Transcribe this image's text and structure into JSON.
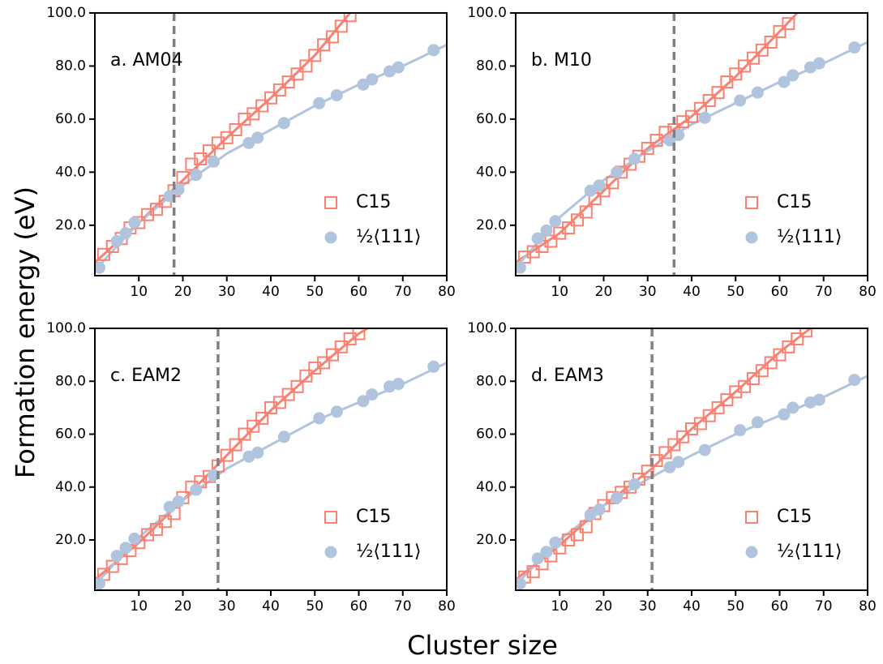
{
  "xlabel": "Cluster size",
  "ylabel": "Formation energy (eV)",
  "chart_data": [
    {
      "type": "scatter",
      "title": "a. AM04",
      "xlim": [
        0,
        80
      ],
      "ylim": [
        1,
        100
      ],
      "xticks": [
        10,
        20,
        30,
        40,
        50,
        60,
        70,
        80
      ],
      "yticks": [
        {
          "value": 20,
          "label": "20.0"
        },
        {
          "value": 40,
          "label": "40.0"
        },
        {
          "value": 60,
          "label": "60.0"
        },
        {
          "value": 80,
          "label": "80.0"
        },
        {
          "value": 100,
          "label": "100.0"
        }
      ],
      "legend": "lower right",
      "vline": 18,
      "vline_color": "#808080",
      "series": [
        {
          "name": "C15",
          "color": "#fa8072",
          "marker": "square",
          "x": [
            2,
            4,
            6,
            8,
            10,
            12,
            14,
            16,
            18,
            20,
            22,
            24,
            26,
            28,
            30,
            32,
            34,
            36,
            38,
            40,
            42,
            44,
            46,
            48,
            50,
            52,
            54,
            56,
            58
          ],
          "values": [
            9,
            12,
            15,
            19,
            21,
            24,
            26,
            29,
            33,
            38,
            43,
            45,
            48,
            51,
            53,
            56,
            60,
            62,
            65,
            68,
            71,
            74,
            77,
            80,
            84,
            88,
            91,
            95,
            99
          ]
        },
        {
          "name": "½⟨111⟩",
          "color": "#b0c4de",
          "marker": "circle",
          "x": [
            1,
            5,
            7,
            9,
            17,
            19,
            23,
            27,
            35,
            37,
            43,
            51,
            55,
            61,
            63,
            67,
            69,
            77
          ],
          "values": [
            4,
            14,
            17,
            21,
            31,
            33.5,
            39,
            44,
            51,
            53,
            58.5,
            66,
            69,
            73,
            75,
            78,
            79.5,
            86
          ]
        }
      ],
      "fits": [
        {
          "color": "#fa8072",
          "x": [
            0,
            10,
            20,
            30,
            40,
            50,
            58
          ],
          "values": [
            6,
            21,
            37,
            53,
            68,
            84,
            100
          ]
        },
        {
          "color": "#b0c4de",
          "x": [
            0,
            10,
            20,
            30,
            40,
            50,
            60,
            70,
            80
          ],
          "values": [
            3,
            21,
            35,
            47,
            56,
            65,
            73,
            80,
            88
          ]
        }
      ]
    },
    {
      "type": "scatter",
      "title": "b. M10",
      "xlim": [
        0,
        80
      ],
      "ylim": [
        1,
        100
      ],
      "xticks": [
        10,
        20,
        30,
        40,
        50,
        60,
        70,
        80
      ],
      "yticks": [
        {
          "value": 20,
          "label": "20.0"
        },
        {
          "value": 40,
          "label": "40.0"
        },
        {
          "value": 60,
          "label": "60.0"
        },
        {
          "value": 80,
          "label": "80.0"
        },
        {
          "value": 100,
          "label": "100.0"
        }
      ],
      "legend": "lower right",
      "vline": 36,
      "vline_color": "#808080",
      "series": [
        {
          "name": "C15",
          "color": "#fa8072",
          "marker": "square",
          "x": [
            2,
            4,
            6,
            8,
            10,
            12,
            14,
            16,
            18,
            20,
            22,
            24,
            26,
            28,
            30,
            32,
            34,
            36,
            38,
            40,
            42,
            44,
            46,
            48,
            50,
            52,
            54,
            56,
            58,
            60,
            62
          ],
          "values": [
            8,
            10,
            12,
            14,
            17,
            19,
            22,
            25,
            30,
            33,
            36,
            40,
            43,
            46,
            49,
            52,
            55,
            56,
            59,
            61,
            64,
            67,
            70,
            74,
            77,
            80,
            83,
            86,
            89,
            93,
            96
          ]
        },
        {
          "name": "½⟨111⟩",
          "color": "#b0c4de",
          "marker": "circle",
          "x": [
            1,
            5,
            7,
            9,
            17,
            19,
            23,
            27,
            35,
            37,
            43,
            51,
            55,
            61,
            63,
            67,
            69,
            77
          ],
          "values": [
            4,
            15,
            18,
            21.5,
            33,
            35,
            40,
            45,
            52,
            54,
            60.5,
            67,
            70,
            74,
            76.5,
            79.5,
            81,
            87
          ]
        }
      ],
      "fits": [
        {
          "color": "#fa8072",
          "x": [
            0,
            10,
            20,
            30,
            40,
            50,
            60,
            64
          ],
          "values": [
            6,
            17,
            33,
            49,
            61,
            76,
            93,
            100
          ]
        },
        {
          "color": "#b0c4de",
          "x": [
            0,
            10,
            20,
            30,
            40,
            50,
            60,
            70,
            80
          ],
          "values": [
            4,
            23,
            37,
            48,
            58,
            66,
            74,
            81,
            89
          ]
        }
      ]
    },
    {
      "type": "scatter",
      "title": "c. EAM2",
      "xlim": [
        0,
        80
      ],
      "ylim": [
        1,
        100
      ],
      "xticks": [
        10,
        20,
        30,
        40,
        50,
        60,
        70,
        80
      ],
      "yticks": [
        {
          "value": 20,
          "label": "20.0"
        },
        {
          "value": 40,
          "label": "40.0"
        },
        {
          "value": 60,
          "label": "60.0"
        },
        {
          "value": 80,
          "label": "80.0"
        },
        {
          "value": 100,
          "label": "100.0"
        }
      ],
      "legend": "lower right",
      "vline": 28,
      "vline_color": "#808080",
      "series": [
        {
          "name": "C15",
          "color": "#fa8072",
          "marker": "square",
          "x": [
            2,
            4,
            6,
            8,
            10,
            12,
            14,
            16,
            18,
            20,
            22,
            24,
            26,
            28,
            30,
            32,
            34,
            36,
            38,
            40,
            42,
            44,
            46,
            48,
            50,
            52,
            54,
            56,
            58,
            60
          ],
          "values": [
            7,
            10,
            13,
            16,
            19,
            22,
            24,
            27,
            30,
            36,
            40,
            42,
            44,
            48,
            52,
            56,
            60,
            63,
            66,
            70,
            72,
            75,
            78,
            82,
            85,
            87,
            90,
            93,
            96,
            98
          ]
        },
        {
          "name": "½⟨111⟩",
          "color": "#b0c4de",
          "marker": "circle",
          "x": [
            1,
            5,
            7,
            9,
            17,
            19,
            23,
            27,
            35,
            37,
            43,
            51,
            55,
            61,
            63,
            67,
            69,
            77
          ],
          "values": [
            3.5,
            14,
            17,
            20.5,
            32.5,
            34.5,
            39,
            44.5,
            51.5,
            53,
            59,
            66,
            68.5,
            72.5,
            75,
            78,
            79,
            85.5
          ]
        }
      ],
      "fits": [
        {
          "color": "#fa8072",
          "x": [
            0,
            10,
            20,
            30,
            40,
            50,
            60,
            62
          ],
          "values": [
            5,
            19,
            35,
            52,
            69,
            84,
            98,
            100
          ]
        },
        {
          "color": "#b0c4de",
          "x": [
            0,
            10,
            20,
            30,
            40,
            50,
            60,
            70,
            80
          ],
          "values": [
            3,
            21,
            35,
            47,
            56,
            65,
            72,
            79,
            87
          ]
        }
      ]
    },
    {
      "type": "scatter",
      "title": "d. EAM3",
      "xlim": [
        0,
        80
      ],
      "ylim": [
        1,
        100
      ],
      "xticks": [
        10,
        20,
        30,
        40,
        50,
        60,
        70,
        80
      ],
      "yticks": [
        {
          "value": 20,
          "label": "20.0"
        },
        {
          "value": 40,
          "label": "40.0"
        },
        {
          "value": 60,
          "label": "60.0"
        },
        {
          "value": 80,
          "label": "80.0"
        },
        {
          "value": 100,
          "label": "100.0"
        }
      ],
      "legend": "lower right",
      "vline": 31,
      "vline_color": "#808080",
      "series": [
        {
          "name": "C15",
          "color": "#fa8072",
          "marker": "square",
          "x": [
            2,
            4,
            6,
            8,
            10,
            12,
            14,
            16,
            18,
            20,
            22,
            24,
            26,
            28,
            30,
            32,
            34,
            36,
            38,
            40,
            42,
            44,
            46,
            48,
            50,
            52,
            54,
            56,
            58,
            60,
            62,
            64,
            66
          ],
          "values": [
            6,
            8,
            11,
            14,
            17,
            20,
            22,
            25,
            30,
            33,
            36,
            38,
            40,
            43,
            46,
            50,
            53,
            56,
            59,
            62,
            64,
            67,
            70,
            73,
            76,
            78,
            81,
            84,
            87,
            90,
            93,
            96,
            99
          ]
        },
        {
          "name": "½⟨111⟩",
          "color": "#b0c4de",
          "marker": "circle",
          "x": [
            1,
            5,
            7,
            9,
            17,
            19,
            23,
            27,
            35,
            37,
            43,
            51,
            55,
            61,
            63,
            67,
            69,
            77
          ],
          "values": [
            3.5,
            13,
            15.5,
            19,
            29.5,
            31.5,
            36,
            41,
            47.5,
            49.5,
            54,
            61.5,
            64.5,
            67.5,
            70,
            72,
            73,
            80.5
          ]
        }
      ],
      "fits": [
        {
          "color": "#fa8072",
          "x": [
            0,
            10,
            20,
            31,
            40,
            50,
            60,
            67
          ],
          "values": [
            5,
            18,
            33,
            47,
            62,
            76,
            91,
            100
          ]
        },
        {
          "color": "#b0c4de",
          "x": [
            0,
            10,
            20,
            30,
            40,
            50,
            60,
            70,
            80
          ],
          "values": [
            3,
            20,
            33,
            43,
            52,
            60,
            67,
            74,
            82
          ]
        }
      ]
    }
  ]
}
